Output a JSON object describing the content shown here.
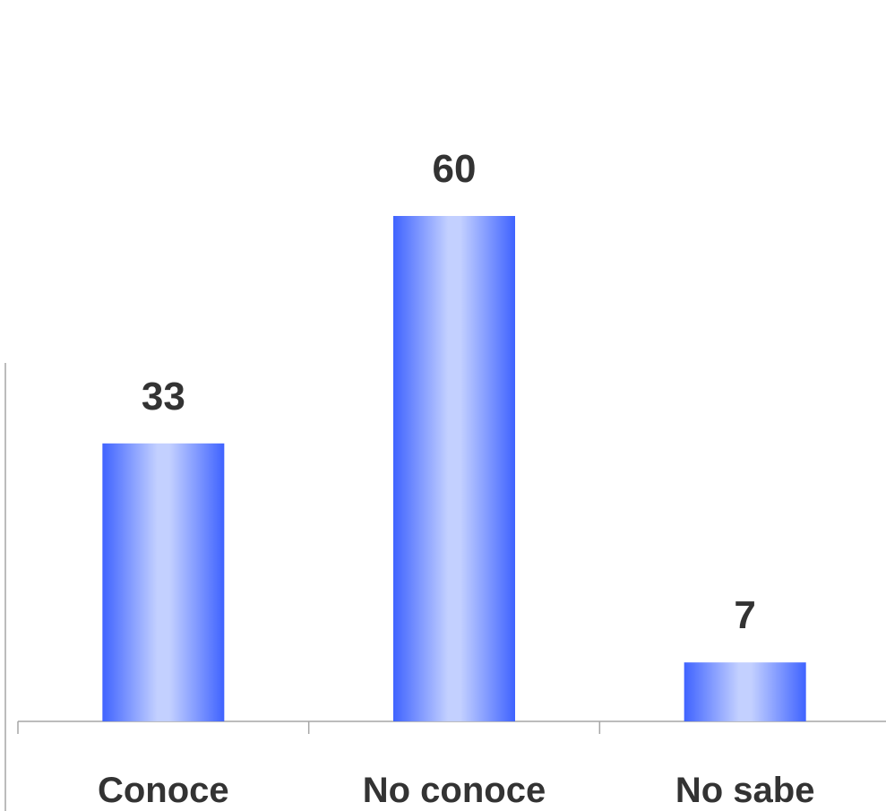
{
  "chart_data": {
    "type": "bar",
    "categories": [
      "Conoce",
      "No conoce",
      "No sabe"
    ],
    "values": [
      33,
      60,
      7
    ],
    "value_labels": [
      "33",
      "60",
      "7"
    ],
    "title": "",
    "xlabel": "",
    "ylabel": "",
    "ylim": [
      0,
      60
    ],
    "grid": false,
    "legend": "none",
    "colors": {
      "bar_edge": "#3f63ff",
      "bar_center": "#c3d0ff",
      "label_text": "#333333",
      "axis": "#a6a6a6"
    }
  }
}
